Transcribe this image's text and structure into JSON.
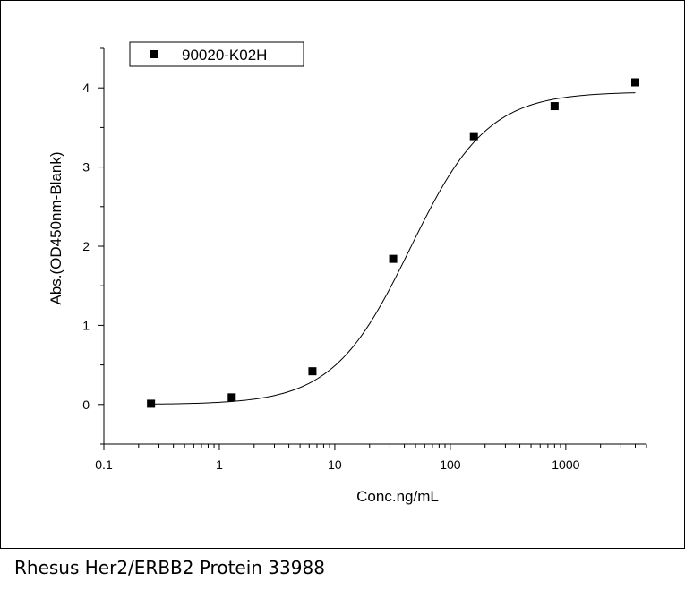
{
  "caption": "Rhesus Her2/ERBB2 Protein 33988",
  "chart_data": {
    "type": "scatter",
    "xlabel": "Conc.ng/mL",
    "ylabel": "Abs.(OD450nm-Blank)",
    "x_scale": "log",
    "xlim": [
      0.1,
      5000
    ],
    "ylim": [
      -0.5,
      4.5
    ],
    "x_ticks": [
      {
        "value": 0.1,
        "label": "0.1"
      },
      {
        "value": 1,
        "label": "1"
      },
      {
        "value": 10,
        "label": "10"
      },
      {
        "value": 100,
        "label": "100"
      },
      {
        "value": 1000,
        "label": "1000"
      }
    ],
    "y_ticks": [
      {
        "value": 0,
        "label": "0"
      },
      {
        "value": 1,
        "label": "1"
      },
      {
        "value": 2,
        "label": "2"
      },
      {
        "value": 3,
        "label": "3"
      },
      {
        "value": 4,
        "label": "4"
      }
    ],
    "legend_position": "top-left",
    "series": [
      {
        "name": "90020-K02H",
        "marker": "square",
        "color": "#000000",
        "x": [
          0.256,
          1.28,
          6.4,
          32,
          160,
          800,
          4000
        ],
        "y": [
          0.01,
          0.09,
          0.42,
          1.84,
          3.39,
          3.77,
          4.07
        ]
      }
    ],
    "fit_curve": {
      "model": "4PL",
      "bottom": 0.0,
      "top": 3.95,
      "ec50": 45,
      "hill": 1.3,
      "color": "#000000"
    }
  }
}
